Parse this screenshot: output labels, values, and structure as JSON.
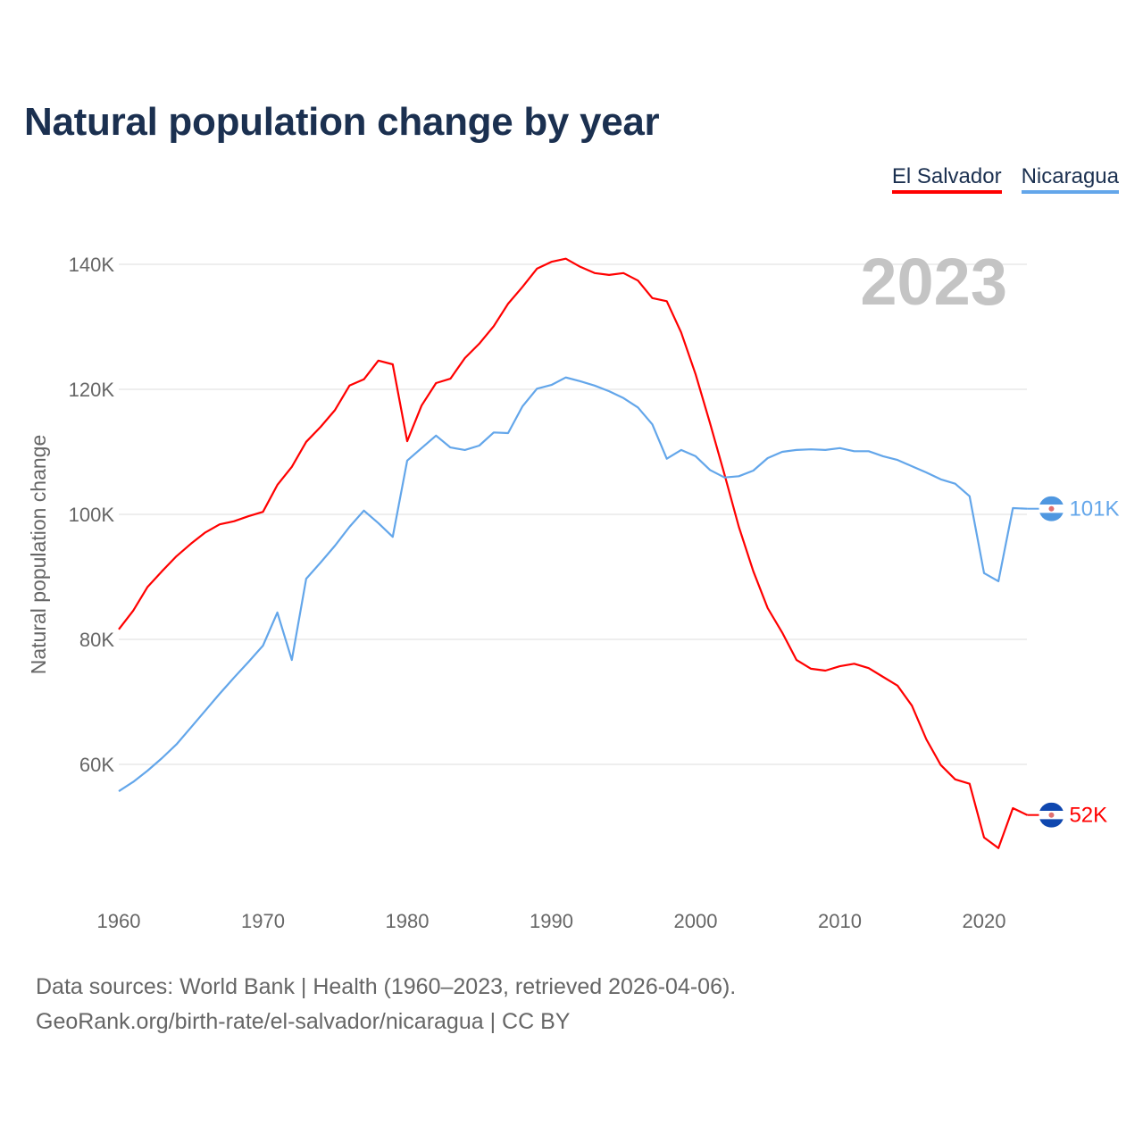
{
  "title": "Natural population change by year",
  "year_watermark": "2023",
  "footer": {
    "line1": "Data sources: World Bank | Health (1960–2023, retrieved 2026-04-06).",
    "line2": "GeoRank.org/birth-rate/el-salvador/nicaragua | CC BY"
  },
  "chart_data": {
    "type": "line",
    "title": "Natural population change by year",
    "xlabel": "",
    "ylabel": "Natural population change",
    "xlim": [
      1960,
      2023
    ],
    "ylim": [
      40000,
      140000
    ],
    "x_ticks": [
      1960,
      1970,
      1980,
      1990,
      2000,
      2010,
      2020
    ],
    "x_tick_labels": [
      "1960",
      "1970",
      "1980",
      "1990",
      "2000",
      "2010",
      "2020"
    ],
    "y_ticks": [
      60000,
      80000,
      100000,
      120000,
      140000
    ],
    "y_tick_labels": [
      "60K",
      "80K",
      "100K",
      "120K",
      "140K"
    ],
    "grid": true,
    "legend_position": "top-right",
    "x_start": 1960,
    "series": [
      {
        "name": "El Salvador",
        "color": "#ff0000",
        "end_label": "52K",
        "flag": "el-salvador-flag-icon",
        "values": [
          81600,
          84600,
          88400,
          90900,
          93300,
          95300,
          97100,
          98400,
          98900,
          99700,
          100400,
          104700,
          107600,
          111600,
          114000,
          116700,
          120600,
          121600,
          124600,
          124000,
          111700,
          117400,
          121000,
          121700,
          125000,
          127300,
          130100,
          133700,
          136400,
          139300,
          140400,
          140900,
          139600,
          138600,
          138300,
          138600,
          137400,
          134600,
          134100,
          129100,
          122400,
          114600,
          106400,
          98000,
          90900,
          85000,
          81100,
          76700,
          75300,
          75000,
          75700,
          76100,
          75400,
          74000,
          72600,
          69400,
          64000,
          59900,
          57600,
          56900,
          48300,
          46600,
          53000,
          51900
        ]
      },
      {
        "name": "Nicaragua",
        "color": "#63a6ea",
        "end_label": "101K",
        "flag": "nicaragua-flag-icon",
        "values": [
          55700,
          57200,
          59000,
          61000,
          63200,
          65900,
          68600,
          71300,
          73900,
          76400,
          79000,
          84300,
          76700,
          89700,
          92300,
          95000,
          98000,
          100600,
          98600,
          96400,
          108600,
          110600,
          112600,
          110700,
          110300,
          111000,
          113100,
          113000,
          117300,
          120100,
          120700,
          121900,
          121300,
          120600,
          119700,
          118600,
          117100,
          114400,
          108900,
          110300,
          109300,
          107100,
          105900,
          106100,
          107000,
          109000,
          110000,
          110300,
          110400,
          110300,
          110600,
          110100,
          110100,
          109300,
          108700,
          107700,
          106700,
          105600,
          104900,
          102900,
          90600,
          89300,
          101000,
          100900
        ]
      }
    ]
  }
}
